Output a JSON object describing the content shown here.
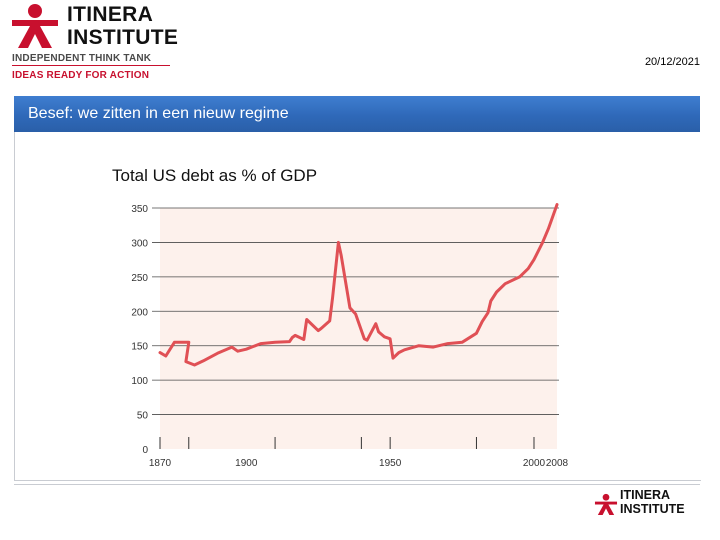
{
  "header": {
    "logo": {
      "name_line1": "ITINERA",
      "name_line2": "INSTITUTE",
      "tagline1": "INDEPENDENT THINK TANK",
      "tagline2": "IDEAS READY FOR ACTION",
      "brand_color": "#c8102e",
      "icon": "itinera-figure-logo"
    },
    "date": "20/12/2021"
  },
  "slide": {
    "title": "Besef: we zitten in een nieuw regime",
    "banner_color": "#2f69b9"
  },
  "footer": {
    "logo": {
      "name_line1": "ITINERA",
      "name_line2": "INSTITUTE"
    }
  },
  "chart_data": {
    "type": "area",
    "title": "Total US debt as % of GDP",
    "xlabel": "",
    "ylabel": "",
    "xlim": [
      1870,
      2008
    ],
    "ylim": [
      0,
      350
    ],
    "y_ticks": [
      0,
      50,
      100,
      150,
      200,
      250,
      300,
      350
    ],
    "x_tick_labels": [
      "1870",
      "1900",
      "1950",
      "2000",
      "2008"
    ],
    "x_tick_label_years": [
      1870,
      1900,
      1950,
      2000,
      2008
    ],
    "x_tick_marks": [
      1870,
      1880,
      1910,
      1940,
      1950,
      1980,
      2000
    ],
    "grid": "horizontal",
    "line_color": "#e05055",
    "fill_color": "#fdf1ec",
    "series": [
      {
        "x": [
          1870,
          1872,
          1875,
          1880,
          1879,
          1882,
          1885,
          1890,
          1895,
          1897,
          1900,
          1905,
          1910,
          1915,
          1916,
          1917,
          1920,
          1921,
          1925,
          1926,
          1929,
          1930,
          1932,
          1933,
          1936,
          1938,
          1941,
          1942,
          1945,
          1946,
          1948,
          1950,
          1951,
          1953,
          1955,
          1960,
          1965,
          1970,
          1975,
          1980,
          1982,
          1984,
          1985,
          1987,
          1990,
          1995,
          1998,
          2000,
          2003,
          2005,
          2008
        ],
        "values": [
          140,
          135,
          155,
          155,
          127,
          122,
          128,
          139,
          148,
          142,
          145,
          153,
          155,
          156,
          162,
          165,
          159,
          188,
          172,
          175,
          186,
          220,
          300,
          281,
          205,
          196,
          160,
          158,
          182,
          170,
          163,
          160,
          132,
          140,
          144,
          150,
          148,
          153,
          155,
          168,
          185,
          198,
          215,
          228,
          240,
          250,
          262,
          275,
          300,
          320,
          355
        ]
      }
    ]
  }
}
